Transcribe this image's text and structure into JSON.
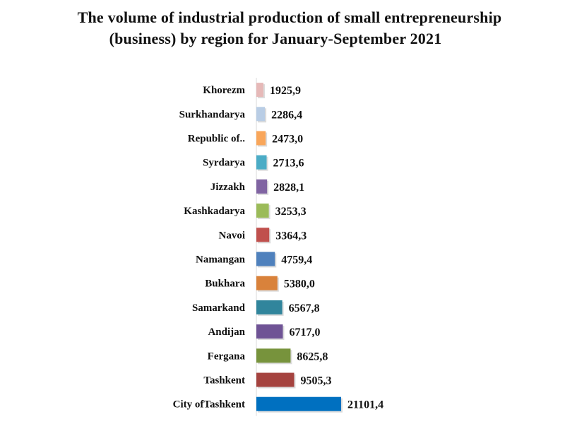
{
  "chart_data": {
    "type": "bar",
    "orientation": "horizontal",
    "title_line1": "The volume of industrial production of small entrepreneurship",
    "title_line2": "(business) by region for January-September 2021",
    "categories": [
      "Khorezm",
      "Surkhandarya",
      "Republic of..",
      "Syrdarya",
      "Jizzakh",
      "Kashkadarya",
      "Navoi",
      "Namangan",
      "Bukhara",
      "Samarkand",
      "Andijan",
      "Fergana",
      "Tashkent",
      "City ofTashkent"
    ],
    "values": [
      1925.9,
      2286.4,
      2473.0,
      2713.6,
      2828.1,
      3253.3,
      3364.3,
      4759.4,
      5380.0,
      6567.8,
      6717.0,
      8625.8,
      9505.3,
      21101.4
    ],
    "value_labels": [
      "1925,9",
      "2286,4",
      "2473,0",
      "2713,6",
      "2828,1",
      "3253,3",
      "3364,3",
      "4759,4",
      "5380,0",
      "6567,8",
      "6717,0",
      "8625,8",
      "9505,3",
      "21101,4"
    ],
    "colors": [
      "#e6b9b8",
      "#b9cde5",
      "#f9a65a",
      "#4bacc6",
      "#8064a2",
      "#9bbb59",
      "#c0504d",
      "#4f81bd",
      "#d9823b",
      "#31859c",
      "#6f5395",
      "#77933c",
      "#a5433f",
      "#0070c0"
    ],
    "xlabel": "",
    "ylabel": "",
    "legend": "none",
    "grid": false
  }
}
